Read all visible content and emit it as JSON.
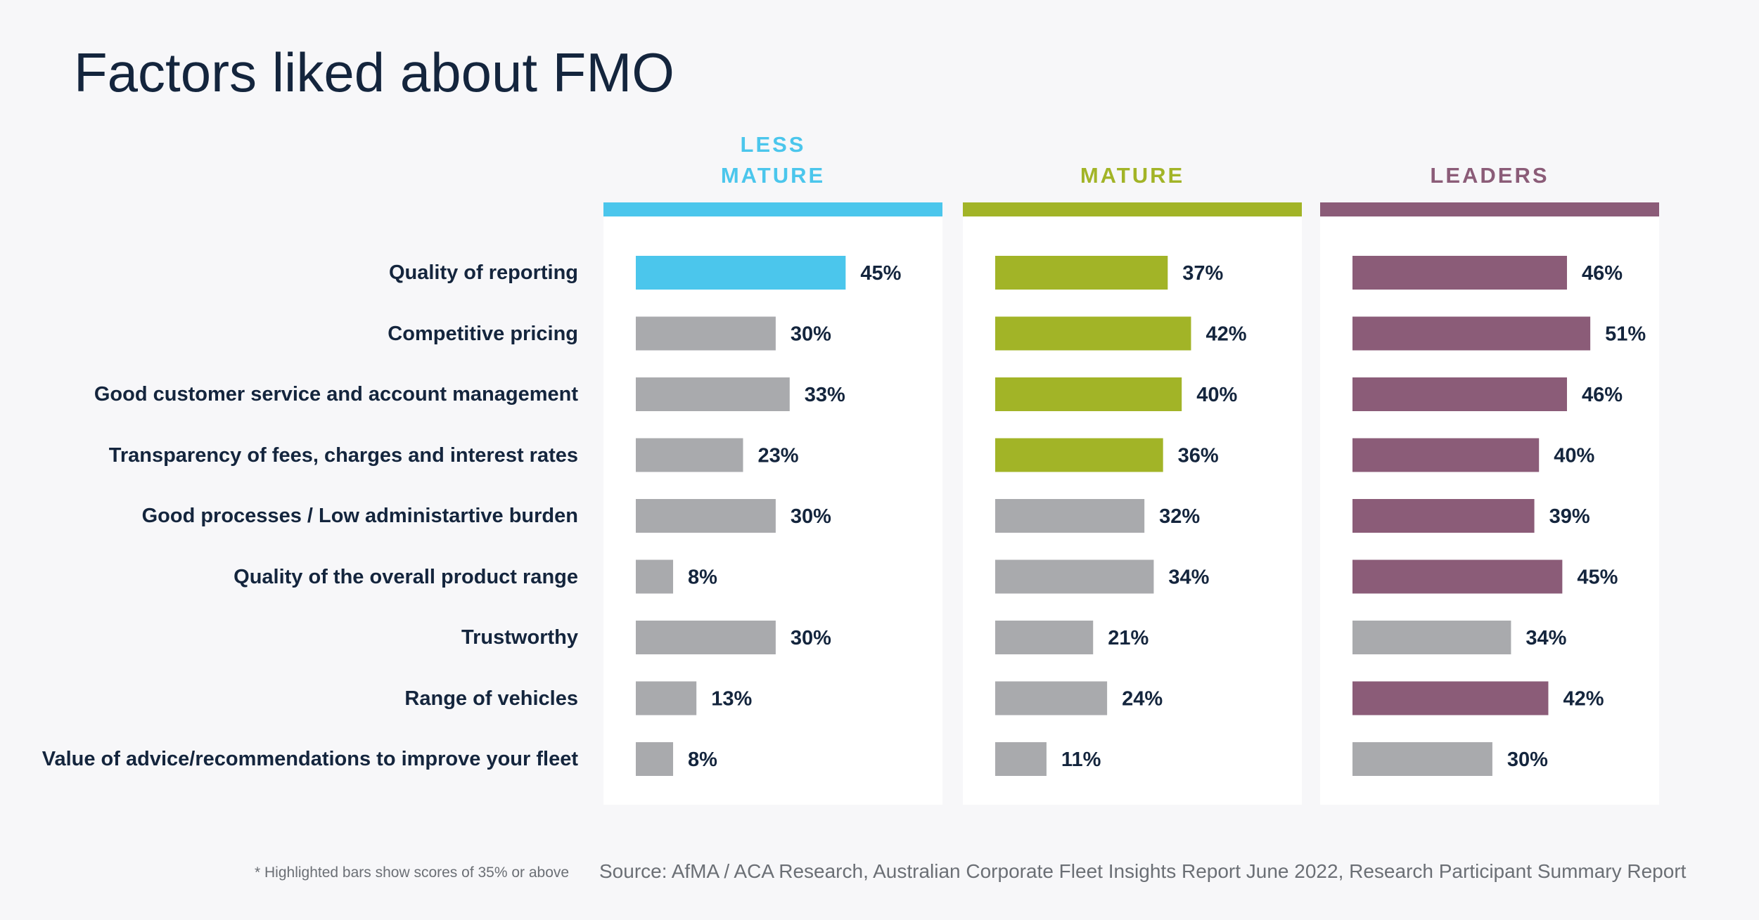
{
  "chart_data": {
    "type": "bar",
    "title": "Factors liked about FMO",
    "categories": [
      "Quality of reporting",
      "Competitive pricing",
      "Good customer service and account management",
      "Transparency of fees, charges and interest rates",
      "Good processes / Low administartive burden",
      "Quality of the overall product range",
      "Trustworthy",
      "Range of vehicles",
      "Value of advice/recommendations to improve your fleet"
    ],
    "series": [
      {
        "name": "LESS MATURE",
        "header_lines": [
          "LESS",
          "MATURE"
        ],
        "color": "#4bc6ec",
        "values": [
          45,
          30,
          33,
          23,
          30,
          8,
          30,
          13,
          8
        ],
        "labels": [
          "45%",
          "30%",
          "33%",
          "23%",
          "30%",
          "8%",
          "30%",
          "13%",
          "8%"
        ]
      },
      {
        "name": "MATURE",
        "header_lines": [
          "MATURE"
        ],
        "color": "#a2b427",
        "values": [
          37,
          42,
          40,
          36,
          32,
          34,
          21,
          24,
          11
        ],
        "labels": [
          "37%",
          "42%",
          "40%",
          "36%",
          "32%",
          "34%",
          "21%",
          "24%",
          "11%"
        ]
      },
      {
        "name": "LEADERS",
        "header_lines": [
          "LEADERS"
        ],
        "color": "#8b5c78",
        "values": [
          46,
          51,
          46,
          40,
          39,
          45,
          34,
          42,
          30
        ],
        "labels": [
          "46%",
          "51%",
          "46%",
          "40%",
          "39%",
          "45%",
          "34%",
          "42%",
          "30%"
        ]
      }
    ],
    "highlight_threshold": 35,
    "gray_color": "#a9aaad",
    "xlim": [
      0,
      100
    ],
    "grid": false,
    "legend": "top"
  },
  "footnote": "* Highlighted bars show scores of 35% or above",
  "source": "Source: AfMA / ACA Research, Australian Corporate Fleet Insights Report June 2022, Research Participant Summary Report"
}
